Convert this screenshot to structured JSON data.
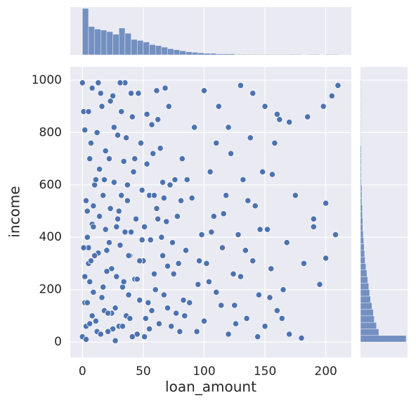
{
  "chart_data": {
    "type": "scatter",
    "x_label": "loan_amount",
    "y_label": "income",
    "color": "#4c72b0",
    "grid": true,
    "xlim": [
      -10,
      221
    ],
    "ylim": [
      -59,
      1051
    ],
    "xticks": [
      0,
      50,
      100,
      150,
      200
    ],
    "yticks": [
      0,
      200,
      400,
      600,
      800,
      1000
    ],
    "x": [
      0,
      2,
      5,
      8,
      10,
      12,
      15,
      18,
      20,
      22,
      25,
      28,
      30,
      32,
      35,
      38,
      40,
      42,
      45,
      48,
      50,
      52,
      55,
      58,
      60,
      62,
      65,
      68,
      70,
      72,
      75,
      78,
      80,
      82,
      85,
      88,
      90,
      92,
      95,
      98,
      100,
      102,
      105,
      108,
      110,
      112,
      115,
      118,
      120,
      122,
      125,
      128,
      130,
      132,
      135,
      138,
      140,
      142,
      145,
      148,
      150,
      152,
      155,
      158,
      160,
      162,
      165,
      168,
      170,
      175,
      180,
      182,
      185,
      190,
      195,
      198,
      200,
      205,
      208,
      210,
      1,
      3,
      4,
      6,
      7,
      9,
      11,
      13,
      14,
      16,
      17,
      19,
      21,
      23,
      24,
      26,
      27,
      29,
      31,
      33,
      34,
      36,
      37,
      39,
      41,
      43,
      44,
      46,
      47,
      49,
      51,
      53,
      54,
      56,
      57,
      59,
      61,
      63,
      64,
      66,
      67,
      69,
      71,
      73,
      74,
      76,
      77,
      79,
      81,
      83,
      2,
      4,
      6,
      8,
      10,
      12,
      14,
      16,
      18,
      20,
      22,
      24,
      26,
      28,
      30,
      32,
      34,
      36,
      38,
      40,
      3,
      9,
      15,
      21,
      27,
      33,
      39,
      45,
      51,
      57,
      5,
      11,
      17,
      23,
      29,
      35,
      41,
      47,
      53,
      59,
      62,
      66,
      70,
      84,
      86,
      94,
      96,
      104,
      106,
      114,
      116,
      124,
      126,
      134,
      136,
      144,
      146,
      154,
      156,
      164,
      0,
      1,
      2,
      3,
      4,
      5,
      6,
      7,
      8,
      9,
      13,
      19,
      25,
      31,
      37,
      43,
      49,
      55,
      61,
      67,
      140,
      150,
      160,
      170,
      190,
      200,
      130,
      120,
      110,
      100
    ],
    "y": [
      20,
      150,
      300,
      450,
      600,
      800,
      950,
      120,
      350,
      700,
      50,
      250,
      500,
      880,
      990,
      180,
      420,
      650,
      30,
      760,
      310,
      90,
      560,
      720,
      200,
      850,
      400,
      970,
      130,
      600,
      260,
      480,
      40,
      700,
      350,
      150,
      550,
      820,
      220,
      410,
      80,
      300,
      650,
      480,
      190,
      900,
      360,
      560,
      30,
      720,
      140,
      410,
      250,
      620,
      90,
      780,
      310,
      520,
      180,
      650,
      60,
      430,
      280,
      760,
      120,
      850,
      200,
      380,
      30,
      560,
      15,
      300,
      860,
      440,
      220,
      900,
      530,
      940,
      410,
      980,
      880,
      60,
      400,
      230,
      760,
      520,
      80,
      340,
      660,
      170,
      560,
      430,
      40,
      920,
      280,
      610,
      130,
      790,
      370,
      210,
      690,
      100,
      540,
      330,
      860,
      240,
      470,
      950,
      160,
      580,
      20,
      680,
      150,
      390,
      830,
      260,
      510,
      70,
      740,
      330,
      180,
      460,
      900,
      60,
      380,
      620,
      110,
      300,
      540,
      160,
      250,
      500,
      700,
      100,
      330,
      40,
      480,
      900,
      620,
      270,
      380,
      110,
      820,
      440,
      60,
      560,
      230,
      780,
      330,
      950,
      10,
      190,
      30,
      110,
      5,
      60,
      90,
      240,
      440,
      120,
      360,
      620,
      210,
      510,
      470,
      420,
      20,
      310,
      870,
      560,
      470,
      610,
      290,
      100,
      620,
      40,
      310,
      230,
      420,
      140,
      490,
      260,
      70,
      350,
      540,
      20,
      430,
      170,
      640,
      90,
      990,
      360,
      810,
      540,
      150,
      880,
      70,
      310,
      970,
      440,
      990,
      730,
      940,
      990,
      600,
      700,
      390,
      50,
      960,
      550,
      950,
      900,
      870,
      840,
      470,
      320,
      980,
      820,
      760,
      960
    ],
    "top_hist": {
      "bins": [
        0,
        5,
        10,
        15,
        20,
        25,
        30,
        35,
        40,
        45,
        50,
        55,
        60,
        65,
        70,
        75,
        80,
        85,
        90,
        95,
        100,
        105,
        110,
        115,
        120,
        125,
        130,
        135,
        140,
        145,
        150,
        155,
        160,
        165,
        170,
        175,
        180,
        185,
        190,
        195,
        200,
        205,
        210
      ],
      "counts": [
        90,
        55,
        50,
        48,
        45,
        40,
        52,
        42,
        30,
        28,
        25,
        20,
        18,
        15,
        12,
        10,
        8,
        6,
        5,
        4,
        3,
        3,
        2,
        2,
        2,
        1,
        1,
        1,
        1,
        1,
        1,
        1,
        1,
        1,
        1,
        1,
        0,
        1,
        1,
        0,
        1,
        1
      ]
    },
    "right_hist": {
      "bins": [
        0,
        25,
        50,
        75,
        100,
        125,
        150,
        175,
        200,
        225,
        250,
        275,
        300,
        325,
        350,
        375,
        400,
        425,
        450,
        475,
        500,
        525,
        550,
        575,
        600,
        625,
        650,
        675,
        700,
        725,
        750,
        775,
        800,
        825,
        850,
        875,
        900,
        925,
        950,
        975,
        1000
      ],
      "counts": [
        100,
        40,
        35,
        30,
        28,
        25,
        22,
        20,
        18,
        16,
        14,
        12,
        10,
        9,
        8,
        7,
        6,
        5,
        5,
        4,
        4,
        3,
        3,
        3,
        2,
        2,
        2,
        2,
        2,
        2,
        1,
        1,
        1,
        1,
        1,
        1,
        1,
        1,
        1,
        1
      ]
    }
  }
}
